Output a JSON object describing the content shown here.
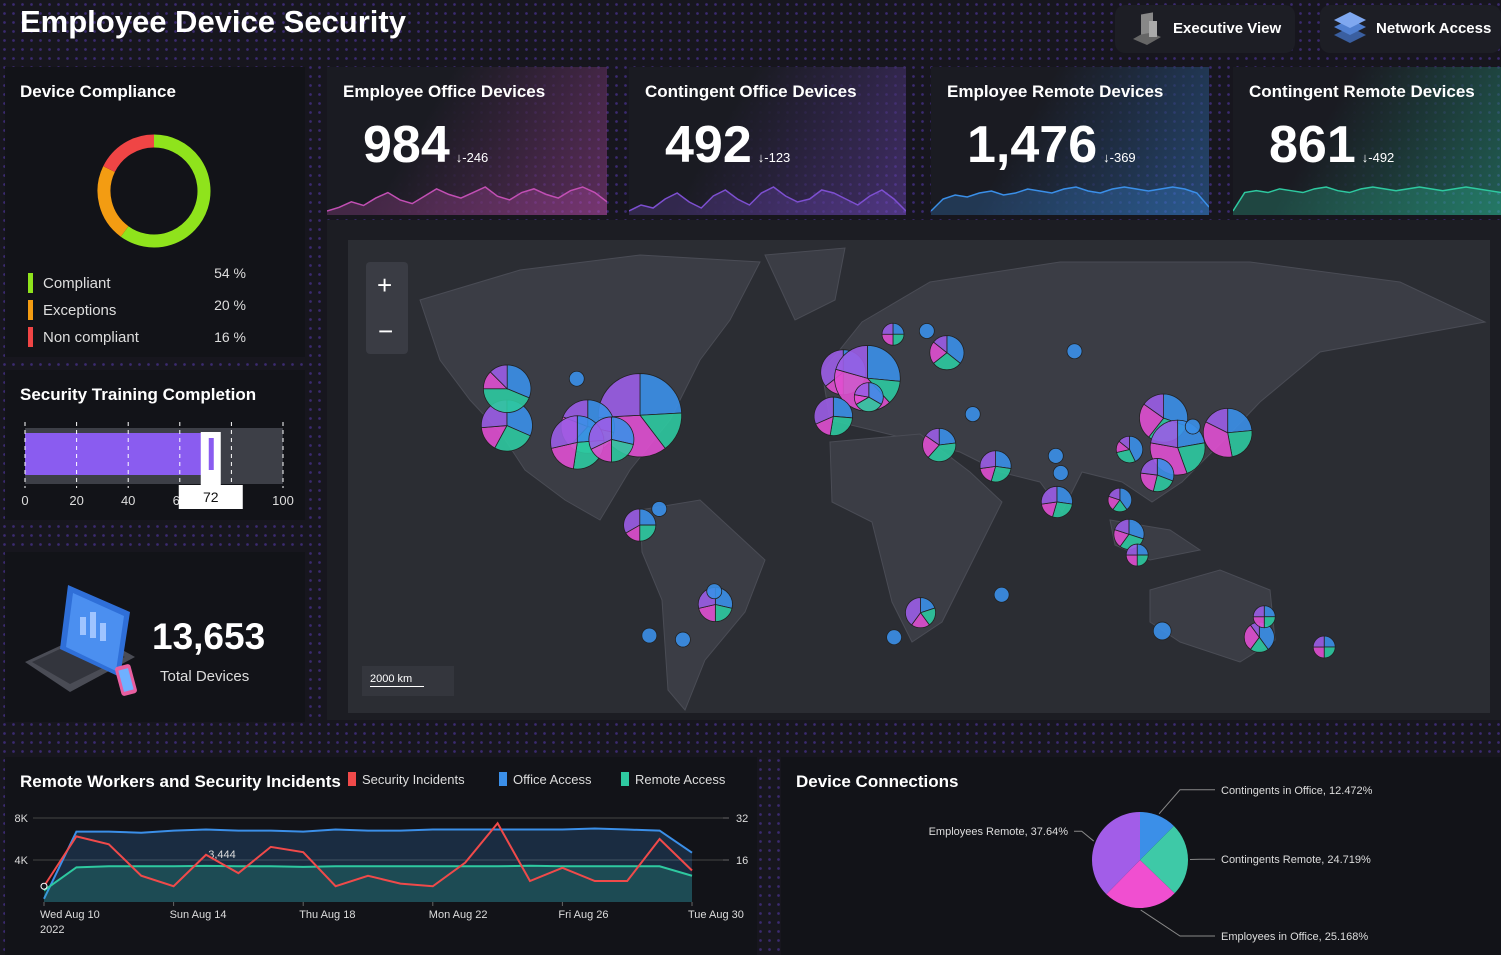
{
  "header": {
    "title": "Employee Device Security",
    "buttons": [
      "Executive View",
      "Network Access"
    ]
  },
  "kpis": [
    {
      "title": "Employee Office Devices",
      "value": "984",
      "delta": "↓-246",
      "color": "#c24fb4",
      "trend": [
        40,
        42,
        45,
        43,
        47,
        50,
        46,
        44,
        48,
        52,
        49,
        47,
        50,
        53,
        48,
        46,
        50,
        52,
        49,
        47,
        51,
        53,
        50,
        45
      ]
    },
    {
      "title": "Contingent Office Devices",
      "value": "492",
      "delta": "↓-123",
      "color": "#7d4fd0",
      "trend": [
        44,
        46,
        45,
        48,
        50,
        47,
        45,
        49,
        51,
        48,
        46,
        50,
        52,
        49,
        47,
        48,
        51,
        50,
        48,
        46,
        49,
        51,
        48,
        44
      ]
    },
    {
      "title": "Employee Remote Devices",
      "value": "1,476",
      "delta": "↓-369",
      "color": "#3a8fe8",
      "trend": [
        38,
        44,
        46,
        45,
        47,
        48,
        46,
        47,
        49,
        48,
        47,
        49,
        50,
        48,
        47,
        49,
        50,
        49,
        48,
        49,
        50,
        49,
        47,
        40
      ]
    },
    {
      "title": "Contingent Remote Devices",
      "value": "861",
      "delta": "↓-492",
      "color": "#2ec9a0",
      "trend": [
        36,
        46,
        47,
        46,
        48,
        47,
        46,
        48,
        49,
        47,
        46,
        48,
        49,
        48,
        47,
        48,
        49,
        48,
        47,
        48,
        49,
        48,
        47,
        46
      ]
    }
  ],
  "total_devices": {
    "value": "13,653",
    "label": "Total Devices"
  },
  "map": {
    "zoom_in": "+",
    "zoom_out": "−",
    "scale": "2000 km",
    "colors": [
      "#3b8fe8",
      "#2ec9a0",
      "#e04fd0",
      "#9b5de5"
    ],
    "markers": [
      {
        "lon": -122.4,
        "lat": 37.8,
        "values": [
          12,
          10,
          6,
          10
        ]
      },
      {
        "lon": -122.3,
        "lat": 47.6,
        "values": [
          10,
          14,
          4,
          4
        ]
      },
      {
        "lon": -97,
        "lat": 50,
        "values": [
          1
        ]
      },
      {
        "lon": -74,
        "lat": 40.7,
        "values": [
          28,
          18,
          40,
          30
        ]
      },
      {
        "lon": -93,
        "lat": 37.5,
        "values": [
          12,
          14,
          8,
          8
        ]
      },
      {
        "lon": -96.8,
        "lat": 32.8,
        "values": [
          10,
          12,
          8,
          12
        ]
      },
      {
        "lon": -84.4,
        "lat": 33.7,
        "values": [
          8,
          6,
          5,
          9
        ]
      },
      {
        "lon": -74.1,
        "lat": 4.7,
        "values": [
          3,
          3,
          2,
          4
        ]
      },
      {
        "lon": -67,
        "lat": 10.5,
        "values": [
          1
        ]
      },
      {
        "lon": -46.6,
        "lat": -23.5,
        "values": [
          4,
          3,
          3,
          4
        ]
      },
      {
        "lon": -47,
        "lat": -19,
        "values": [
          1
        ]
      },
      {
        "lon": -58.4,
        "lat": -34.6,
        "values": [
          1
        ]
      },
      {
        "lon": -70.6,
        "lat": -33.4,
        "values": [
          1
        ]
      },
      {
        "lon": -0.1,
        "lat": 51.5,
        "values": [
          8,
          6,
          4,
          10
        ]
      },
      {
        "lon": 8.7,
        "lat": 50.1,
        "values": [
          18,
          8,
          28,
          14
        ]
      },
      {
        "lon": -3.7,
        "lat": 40.4,
        "values": [
          5,
          5,
          3,
          6
        ]
      },
      {
        "lon": 9.2,
        "lat": 45.5,
        "values": [
          3,
          3,
          1,
          2
        ]
      },
      {
        "lon": 18,
        "lat": 59.3,
        "values": [
          1,
          1,
          1,
          1
        ]
      },
      {
        "lon": 30.3,
        "lat": 59.9,
        "values": [
          1
        ]
      },
      {
        "lon": 37.6,
        "lat": 55.7,
        "values": [
          5,
          4,
          3,
          2
        ]
      },
      {
        "lon": 47,
        "lat": 41,
        "values": [
          1
        ]
      },
      {
        "lon": 34.8,
        "lat": 32,
        "values": [
          3,
          5,
          3,
          2
        ]
      },
      {
        "lon": 55.3,
        "lat": 25.2,
        "values": [
          3,
          3,
          2,
          3
        ]
      },
      {
        "lon": 77.6,
        "lat": 13,
        "values": [
          3,
          3,
          2,
          3
        ]
      },
      {
        "lon": 77.2,
        "lat": 28.6,
        "values": [
          1
        ]
      },
      {
        "lon": 79,
        "lat": 23,
        "values": [
          1
        ]
      },
      {
        "lon": 84,
        "lat": 56,
        "values": [
          1
        ]
      },
      {
        "lon": 103.8,
        "lat": 1.35,
        "values": [
          3,
          3,
          2,
          2
        ]
      },
      {
        "lon": 100.5,
        "lat": 13.7,
        "values": [
          2,
          1,
          1,
          1
        ]
      },
      {
        "lon": 106.8,
        "lat": -6.2,
        "values": [
          1,
          1,
          1,
          1
        ]
      },
      {
        "lon": 116.4,
        "lat": 39.9,
        "values": [
          10,
          10,
          8,
          5
        ]
      },
      {
        "lon": 121.5,
        "lat": 31.2,
        "values": [
          10,
          10,
          15,
          10
        ]
      },
      {
        "lon": 114.1,
        "lat": 22.3,
        "values": [
          4,
          3,
          3,
          3
        ]
      },
      {
        "lon": 104,
        "lat": 30.6,
        "values": [
          3,
          2,
          1,
          1
        ]
      },
      {
        "lon": 139.7,
        "lat": 35.7,
        "values": [
          8,
          8,
          12,
          6
        ]
      },
      {
        "lon": 127,
        "lat": 37.5,
        "values": [
          1
        ]
      },
      {
        "lon": 28,
        "lat": -26.2,
        "values": [
          2,
          2,
          2,
          4
        ]
      },
      {
        "lon": 18.4,
        "lat": -33.9,
        "values": [
          1
        ]
      },
      {
        "lon": 57.5,
        "lat": -20.2,
        "values": [
          1
        ]
      },
      {
        "lon": 151.2,
        "lat": -33.9,
        "values": [
          4,
          2,
          3,
          1
        ]
      },
      {
        "lon": 153,
        "lat": -27.5,
        "values": [
          1,
          1,
          1,
          1
        ]
      },
      {
        "lon": 115.9,
        "lat": -32,
        "values": [
          2
        ]
      },
      {
        "lon": 174.8,
        "lat": -36.8,
        "values": [
          1,
          1,
          1,
          1
        ]
      }
    ]
  },
  "chart_data": [
    {
      "type": "donut",
      "title": "Device Compliance",
      "categories": [
        "Compliant",
        "Exceptions",
        "Non compliant"
      ],
      "values": [
        54,
        20,
        16
      ],
      "value_labels": [
        "54 %",
        "20 %",
        "16 %"
      ],
      "colors": [
        "#8fe31c",
        "#f39c12",
        "#f04545"
      ]
    },
    {
      "type": "bullet",
      "title": "Security Training Completion",
      "value": 72,
      "color": "#8a5cf0",
      "xlim": [
        0,
        100
      ],
      "xticks": [
        0,
        20,
        40,
        60,
        80,
        100
      ]
    },
    {
      "type": "line",
      "title": "Remote Workers and Security Incidents",
      "x": [
        "2022-08-10",
        "2022-08-11",
        "2022-08-12",
        "2022-08-13",
        "2022-08-14",
        "2022-08-15",
        "2022-08-16",
        "2022-08-17",
        "2022-08-18",
        "2022-08-19",
        "2022-08-20",
        "2022-08-21",
        "2022-08-22",
        "2022-08-23",
        "2022-08-24",
        "2022-08-25",
        "2022-08-26",
        "2022-08-27",
        "2022-08-28",
        "2022-08-29",
        "2022-08-30"
      ],
      "xlim": [
        "2022-08-10",
        "2022-08-30"
      ],
      "xticks": [
        {
          "value": "2022-08-10",
          "label": "Wed Aug 10\n2022"
        },
        {
          "value": "2022-08-14",
          "label": "Sun Aug 14"
        },
        {
          "value": "2022-08-18",
          "label": "Thu Aug 18"
        },
        {
          "value": "2022-08-22",
          "label": "Mon Aug 22"
        },
        {
          "value": "2022-08-26",
          "label": "Fri Aug 26"
        },
        {
          "value": "2022-08-30",
          "label": "Tue Aug 30"
        }
      ],
      "ylim": [
        0,
        8000
      ],
      "yticks": [
        {
          "value": 4000,
          "label": "4K"
        },
        {
          "value": 8000,
          "label": "8K"
        }
      ],
      "y2lim": [
        0,
        32
      ],
      "y2ticks": [
        16,
        32
      ],
      "series": [
        {
          "name": "Security Incidents",
          "color": "#f04a4a",
          "axis": "y2",
          "values": [
            6,
            25,
            22,
            10,
            6,
            18,
            11,
            21,
            19,
            6,
            10,
            7,
            6,
            15,
            30,
            8,
            13,
            8,
            8,
            24,
            12
          ]
        },
        {
          "name": "Office Access",
          "color": "#3b8fe8",
          "values": [
            300,
            6700,
            6700,
            6600,
            6800,
            6900,
            6800,
            6800,
            6700,
            6900,
            6800,
            6800,
            6900,
            6900,
            6900,
            6900,
            6900,
            7000,
            6900,
            6800,
            4700
          ]
        },
        {
          "name": "Remote Access",
          "color": "#2ec9a0",
          "values": [
            1100,
            3300,
            3400,
            3400,
            3400,
            3444,
            3400,
            3400,
            3350,
            3400,
            3400,
            3400,
            3400,
            3400,
            3400,
            3450,
            3400,
            3400,
            3400,
            3400,
            2500
          ],
          "value_labels": [
            null,
            null,
            null,
            null,
            null,
            "3,444",
            null,
            null,
            null,
            null,
            null,
            null,
            null,
            null,
            null,
            null,
            null,
            null,
            null,
            null,
            null
          ]
        }
      ]
    },
    {
      "type": "pie",
      "title": "Device Connections",
      "values": [
        12.472,
        24.719,
        25.168,
        37.64
      ],
      "value_labels": [
        "Contingents in Office, 12.472%",
        "Contingents Remote, 24.719%",
        "Employees in Office, 25.168%",
        "Employees Remote, 37.64%"
      ],
      "colors": [
        "#3b8fe8",
        "#3ec9a7",
        "#f04fd0",
        "#a25de8"
      ]
    }
  ]
}
